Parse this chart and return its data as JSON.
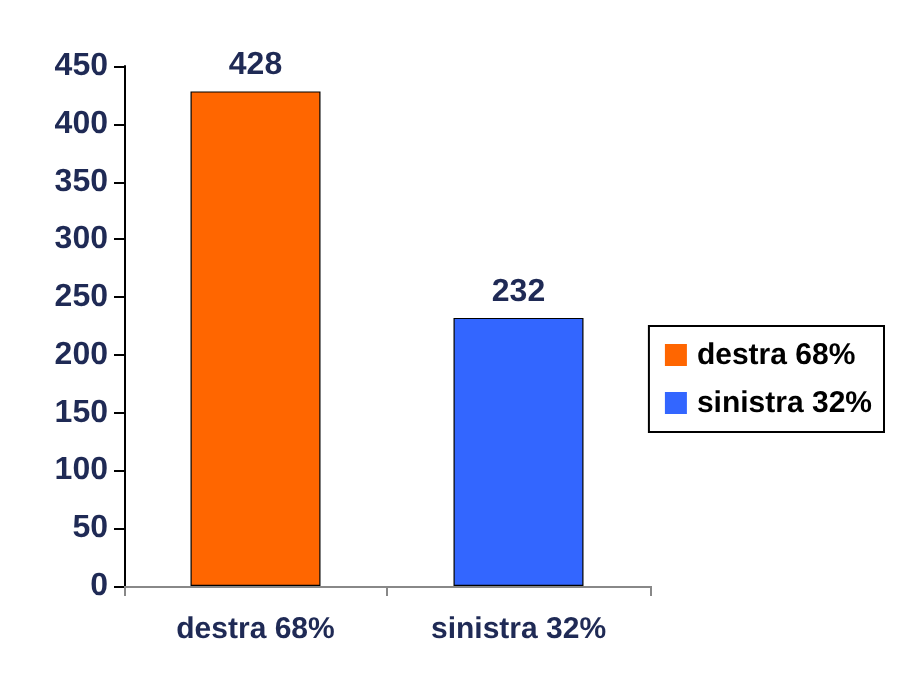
{
  "chart_data": {
    "type": "bar",
    "categories": [
      "destra 68%",
      "sinistra 32%"
    ],
    "stacked": true,
    "series": [
      {
        "name": "destra 68%",
        "color": "#ff6600",
        "values": [
          428,
          null
        ]
      },
      {
        "name": "sinistra 32%",
        "color": "#3366ff",
        "values": [
          null,
          232
        ]
      }
    ],
    "ylim": [
      0,
      450
    ],
    "yticks": [
      0,
      50,
      100,
      150,
      200,
      250,
      300,
      350,
      400,
      450
    ],
    "data_labels": true,
    "grid": false,
    "legend": "right"
  }
}
